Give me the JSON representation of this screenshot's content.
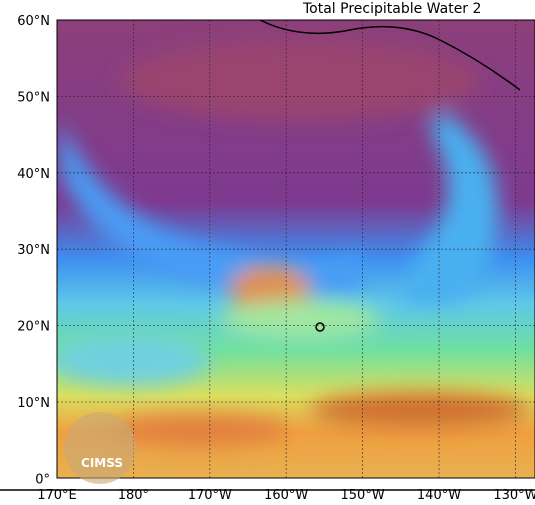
{
  "title": "Total Precipitable Water  2",
  "latitude_labels": [
    "60°N",
    "50°N",
    "40°N",
    "30°N",
    "20°N",
    "10°N",
    "0°"
  ],
  "longitude_labels": [
    "170°E",
    "180°",
    "170°W",
    "160°W",
    "150°W",
    "140°W",
    "130°W"
  ],
  "logo": "CIMSS"
}
